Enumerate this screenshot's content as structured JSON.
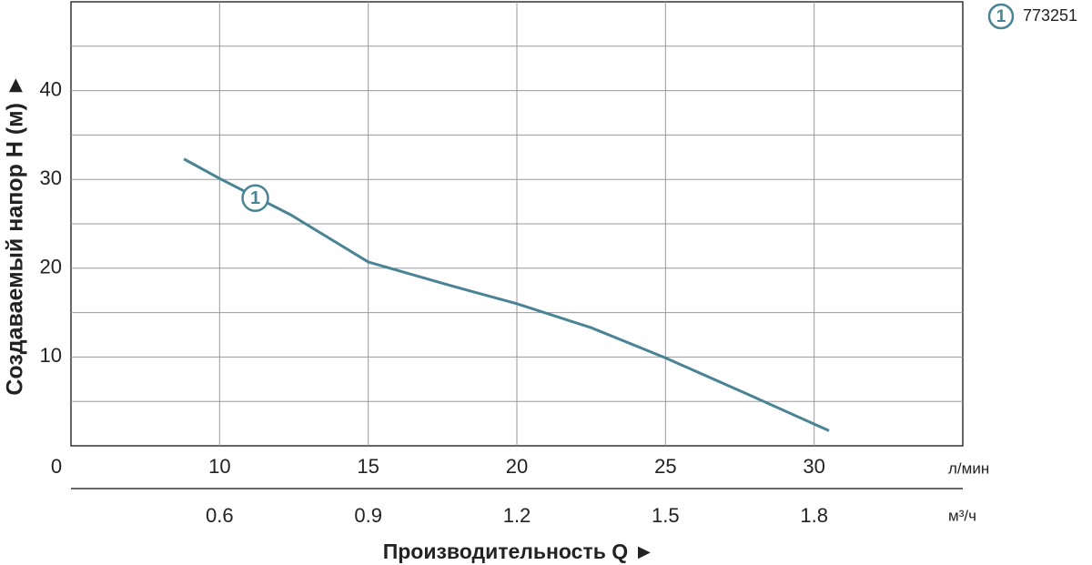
{
  "chart_data": {
    "type": "line",
    "y_title": "Создаваемый напор H (м) ►",
    "x_title": "Производительность Q ►",
    "x_unit": "л/мин",
    "x2_unit": "м³/ч",
    "xlim": [
      5,
      35
    ],
    "xticks": [
      10,
      15,
      20,
      25,
      30
    ],
    "x2lim": [
      0.3,
      2.1
    ],
    "x2ticks": [
      0.6,
      0.9,
      1.2,
      1.5,
      1.8
    ],
    "ylim": [
      0,
      50
    ],
    "yticks": [
      0,
      10,
      20,
      30,
      40
    ],
    "minor_yticks": [
      5,
      15,
      25,
      35,
      45
    ],
    "grid": true,
    "legend": "top-right",
    "series": [
      {
        "name": "773251",
        "label": "1",
        "color": "#4a8494",
        "x": [
          8.8,
          10,
          12.4,
          15,
          17.6,
          20,
          22.5,
          25,
          27.7,
          30.5
        ],
        "values": [
          32.3,
          30.1,
          26.0,
          20.7,
          18.2,
          16.0,
          13.3,
          9.9,
          5.9,
          1.7
        ],
        "label_x": 11.2,
        "label_y": 27.9
      }
    ]
  }
}
